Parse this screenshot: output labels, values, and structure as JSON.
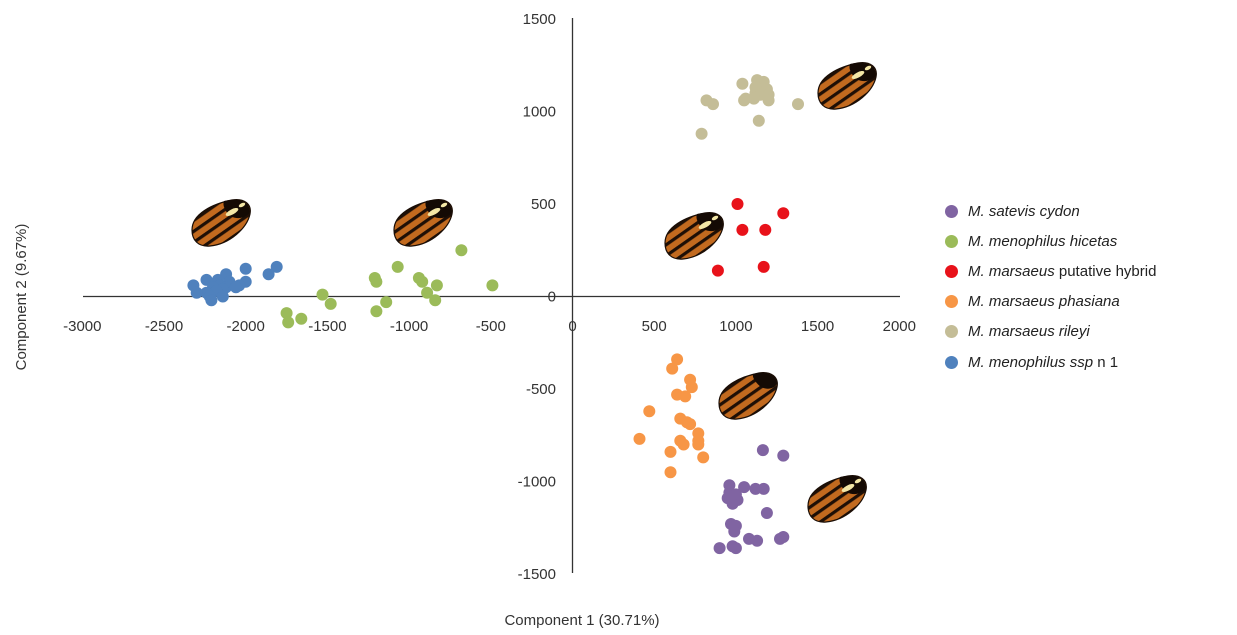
{
  "chart_data": {
    "type": "scatter",
    "xlabel": "Component 1 (30.71%)",
    "ylabel": "Component 2 (9.67%)",
    "xlim": [
      -3000,
      2000
    ],
    "ylim": [
      -1500,
      1500
    ],
    "x_ticks": [
      "-3000",
      "-2500",
      "-2000",
      "-1500",
      "-1000",
      "-500",
      "0",
      "500",
      "1000",
      "1500",
      "2000"
    ],
    "y_ticks": [
      "1500",
      "1000",
      "500",
      "0",
      "-500",
      "-1000",
      "-1500"
    ],
    "legend_position": "right",
    "series": [
      {
        "name": "M. satevis cydon",
        "label_italic": "M. satevis cydon",
        "label_plain": "",
        "color": "#8064a2",
        "points": [
          [
            1165,
            -830
          ],
          [
            1290,
            -860
          ],
          [
            960,
            -1020
          ],
          [
            1050,
            -1030
          ],
          [
            1120,
            -1040
          ],
          [
            1170,
            -1040
          ],
          [
            960,
            -1060
          ],
          [
            1000,
            -1070
          ],
          [
            1010,
            -1100
          ],
          [
            1190,
            -1170
          ],
          [
            980,
            -1120
          ],
          [
            970,
            -1230
          ],
          [
            1000,
            -1240
          ],
          [
            990,
            -1270
          ],
          [
            1080,
            -1310
          ],
          [
            1130,
            -1320
          ],
          [
            1290,
            -1300
          ],
          [
            1270,
            -1310
          ],
          [
            980,
            -1350
          ],
          [
            1000,
            -1360
          ],
          [
            900,
            -1360
          ],
          [
            950,
            -1090
          ]
        ]
      },
      {
        "name": "M. menophilus hicetas",
        "label_italic": "M. menophilus hicetas",
        "label_plain": "",
        "color": "#9bbb59",
        "points": [
          [
            -680,
            250
          ],
          [
            -1070,
            160
          ],
          [
            -1210,
            100
          ],
          [
            -1200,
            80
          ],
          [
            -940,
            100
          ],
          [
            -920,
            80
          ],
          [
            -830,
            60
          ],
          [
            -490,
            60
          ],
          [
            -890,
            20
          ],
          [
            -1530,
            10
          ],
          [
            -840,
            -20
          ],
          [
            -1140,
            -30
          ],
          [
            -1480,
            -40
          ],
          [
            -1200,
            -80
          ],
          [
            -1750,
            -90
          ],
          [
            -1660,
            -120
          ],
          [
            -1740,
            -140
          ]
        ]
      },
      {
        "name": "M. marsaeus putative hybrid",
        "label_italic": "M. marsaeus",
        "label_plain": " putative hybrid",
        "color": "#e8121a",
        "points": [
          [
            1010,
            500
          ],
          [
            1290,
            450
          ],
          [
            1040,
            360
          ],
          [
            1180,
            360
          ],
          [
            890,
            140
          ],
          [
            1170,
            160
          ]
        ]
      },
      {
        "name": "M. marsaeus phasiana",
        "label_italic": "M. marsaeus phasiana",
        "label_plain": "",
        "color": "#f79646",
        "points": [
          [
            640,
            -340
          ],
          [
            610,
            -390
          ],
          [
            730,
            -490
          ],
          [
            640,
            -530
          ],
          [
            690,
            -540
          ],
          [
            720,
            -450
          ],
          [
            470,
            -620
          ],
          [
            660,
            -660
          ],
          [
            700,
            -680
          ],
          [
            720,
            -690
          ],
          [
            770,
            -740
          ],
          [
            770,
            -780
          ],
          [
            660,
            -780
          ],
          [
            680,
            -800
          ],
          [
            770,
            -800
          ],
          [
            600,
            -840
          ],
          [
            800,
            -870
          ],
          [
            410,
            -770
          ],
          [
            600,
            -950
          ]
        ]
      },
      {
        "name": "M. marsaeus rileyi",
        "label_italic": "M. marsaeus rileyi",
        "label_plain": "",
        "color": "#c4bd97",
        "points": [
          [
            1040,
            1150
          ],
          [
            1130,
            1170
          ],
          [
            1170,
            1160
          ],
          [
            1120,
            1130
          ],
          [
            1160,
            1120
          ],
          [
            1190,
            1120
          ],
          [
            1120,
            1100
          ],
          [
            1150,
            1090
          ],
          [
            1200,
            1090
          ],
          [
            1060,
            1070
          ],
          [
            1110,
            1070
          ],
          [
            1200,
            1060
          ],
          [
            1050,
            1060
          ],
          [
            820,
            1060
          ],
          [
            860,
            1040
          ],
          [
            1380,
            1040
          ],
          [
            1140,
            950
          ],
          [
            790,
            880
          ]
        ]
      },
      {
        "name": "M. menophilus ssp n 1",
        "label_italic": "M. menophilus ssp",
        "label_plain": " n 1",
        "color": "#4f81bd",
        "points": [
          [
            -1810,
            160
          ],
          [
            -1860,
            120
          ],
          [
            -2000,
            150
          ],
          [
            -2120,
            120
          ],
          [
            -2240,
            90
          ],
          [
            -2170,
            90
          ],
          [
            -2190,
            70
          ],
          [
            -2100,
            80
          ],
          [
            -2000,
            80
          ],
          [
            -2040,
            60
          ],
          [
            -2160,
            60
          ],
          [
            -2120,
            50
          ],
          [
            -2060,
            50
          ],
          [
            -2320,
            60
          ],
          [
            -2200,
            50
          ],
          [
            -2140,
            40
          ],
          [
            -2180,
            30
          ],
          [
            -2240,
            20
          ],
          [
            -2300,
            20
          ],
          [
            -2220,
            0
          ],
          [
            -2140,
            0
          ],
          [
            -2210,
            -20
          ]
        ]
      }
    ]
  }
}
